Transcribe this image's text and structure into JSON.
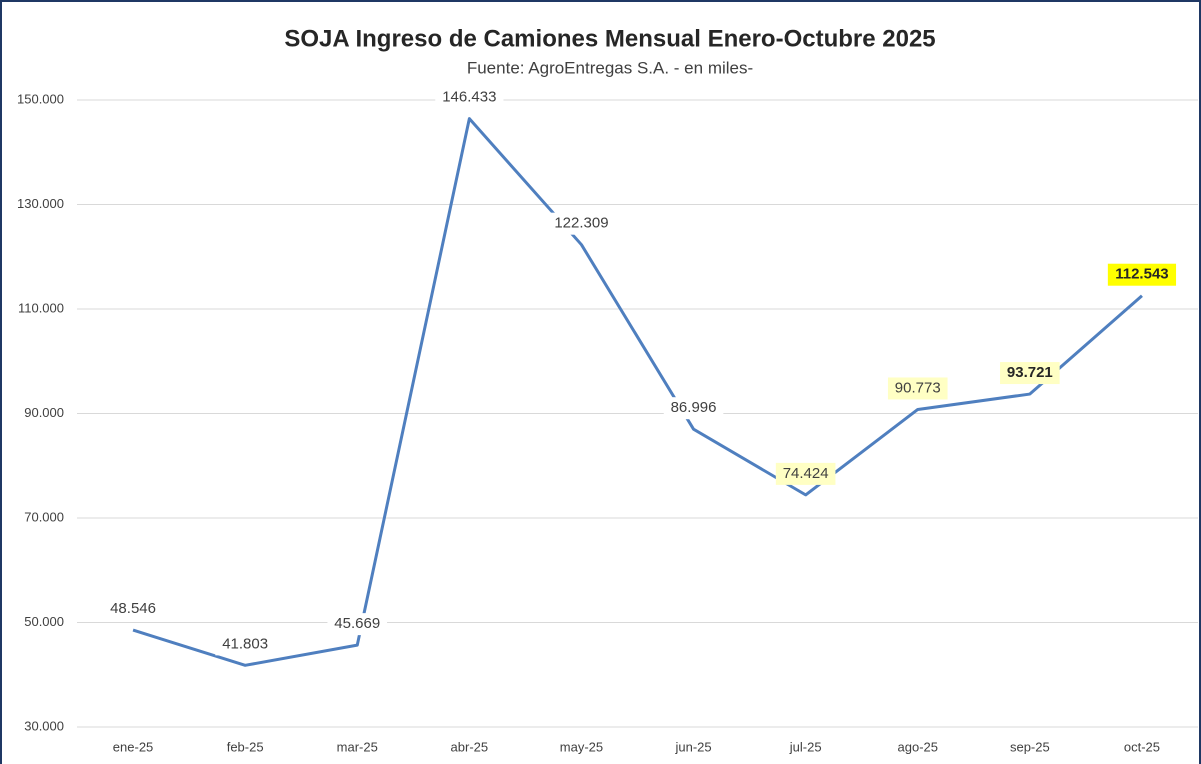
{
  "chart_data": {
    "type": "line",
    "title": "SOJA Ingreso de Camiones Mensual Enero-Octubre 2025",
    "subtitle": "Fuente: AgroEntregas S.A. - en miles-",
    "categories": [
      "ene-25",
      "feb-25",
      "mar-25",
      "abr-25",
      "may-25",
      "jun-25",
      "jul-25",
      "ago-25",
      "sep-25",
      "oct-25"
    ],
    "values": [
      48546,
      41803,
      45669,
      146433,
      122309,
      86996,
      74424,
      90773,
      93721,
      112543
    ],
    "value_labels": [
      "48.546",
      "41.803",
      "45.669",
      "146.433",
      "122.309",
      "86.996",
      "74.424",
      "90.773",
      "93.721",
      "112.543"
    ],
    "label_backgrounds": [
      "#ffffff",
      "#ffffff",
      "#ffffff",
      "#ffffff",
      "#ffffff",
      "#ffffff",
      "#ffffc4",
      "#ffffc4",
      "#ffffc4",
      "#ffff00"
    ],
    "label_bold": [
      false,
      false,
      false,
      false,
      false,
      false,
      false,
      false,
      true,
      true
    ],
    "color": "#4f7fbf",
    "ylim": [
      30000,
      150000
    ],
    "yticks": [
      {
        "value": 30000,
        "label": "30.000"
      },
      {
        "value": 50000,
        "label": "50.000"
      },
      {
        "value": 70000,
        "label": "70.000"
      },
      {
        "value": 90000,
        "label": "90.000"
      },
      {
        "value": 110000,
        "label": "110.000"
      },
      {
        "value": 130000,
        "label": "130.000"
      },
      {
        "value": 150000,
        "label": "150.000"
      }
    ],
    "grid": true
  }
}
